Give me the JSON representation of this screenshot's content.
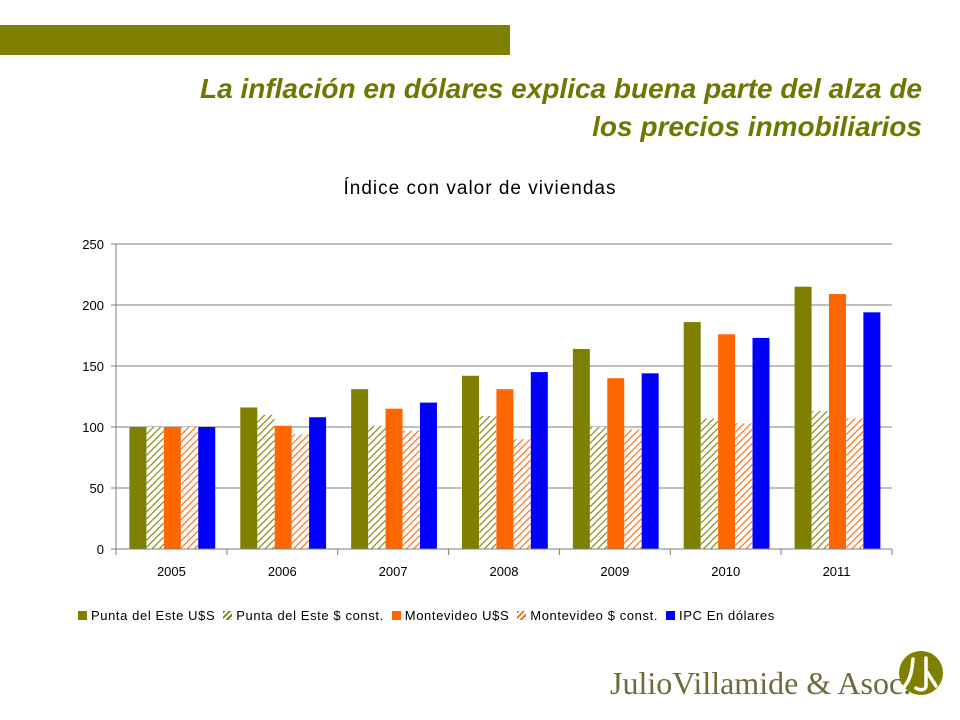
{
  "slide": {
    "title_line1": "La inflación en dólares explica buena parte del alza de",
    "title_line2": "los precios inmobiliarios"
  },
  "logo": {
    "text": "JulioVillamide & Asoc."
  },
  "colors": {
    "accent_bar": "#808000",
    "title": "#6e7800",
    "punta_usd": "#808000",
    "montevideo_usd": "#ff6600",
    "ipc_usd": "#0000ff"
  },
  "chart_data": {
    "type": "bar",
    "title": "Índice con valor de viviendas",
    "xlabel": "",
    "ylabel": "",
    "ylim": [
      0,
      250
    ],
    "yticks": [
      0,
      50,
      100,
      150,
      200,
      250
    ],
    "grid": true,
    "legend_position": "bottom",
    "categories": [
      "2005",
      "2006",
      "2007",
      "2008",
      "2009",
      "2010",
      "2011"
    ],
    "series": [
      {
        "name": "Punta del Este U$S",
        "color": "#808000",
        "pattern": "solid",
        "values": [
          100,
          116,
          131,
          142,
          164,
          186,
          215
        ]
      },
      {
        "name": "Punta del Este $ const.",
        "color": "#808000",
        "pattern": "hatched",
        "values": [
          100,
          110,
          101,
          109,
          100,
          107,
          113
        ]
      },
      {
        "name": "Montevideo U$S",
        "color": "#ff6600",
        "pattern": "solid",
        "values": [
          100,
          101,
          115,
          131,
          140,
          176,
          209
        ]
      },
      {
        "name": "Montevideo $ const.",
        "color": "#ff6600",
        "pattern": "hatched",
        "values": [
          100,
          94,
          97,
          90,
          98,
          103,
          107
        ]
      },
      {
        "name": "IPC En dólares",
        "color": "#0000ff",
        "pattern": "solid",
        "values": [
          100,
          108,
          120,
          145,
          144,
          173,
          194
        ]
      }
    ]
  }
}
